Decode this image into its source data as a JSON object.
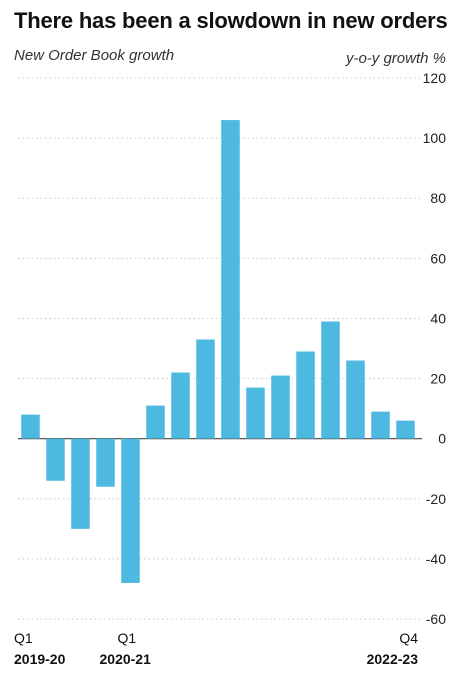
{
  "title": "There has been a slowdown in new orders",
  "subtitle": "New Order Book growth",
  "unit_label": "y-o-y growth %",
  "colors": {
    "bar": "#4db8e0",
    "grid": "#c8c8c8",
    "zero": "#444444"
  },
  "chart_data": {
    "type": "bar",
    "title": "There has been a slowdown in new orders",
    "subtitle": "New Order Book growth",
    "ylabel": "y-o-y growth %",
    "ylim": [
      -60,
      120
    ],
    "yticks": [
      120,
      100,
      80,
      60,
      40,
      20,
      0,
      -20,
      -40,
      -60
    ],
    "grid": true,
    "y_axis_side": "right",
    "values": [
      8,
      -14,
      -30,
      -16,
      -48,
      11,
      22,
      33,
      106,
      17,
      21,
      29,
      39,
      26,
      9,
      6
    ],
    "x_labels": [
      {
        "index": 0,
        "quarter": "Q1",
        "year": "2019-20"
      },
      {
        "index": 4,
        "quarter": "Q1",
        "year": "2020-21"
      },
      {
        "index": 15,
        "quarter": "Q4",
        "year": "2022-23"
      }
    ]
  }
}
